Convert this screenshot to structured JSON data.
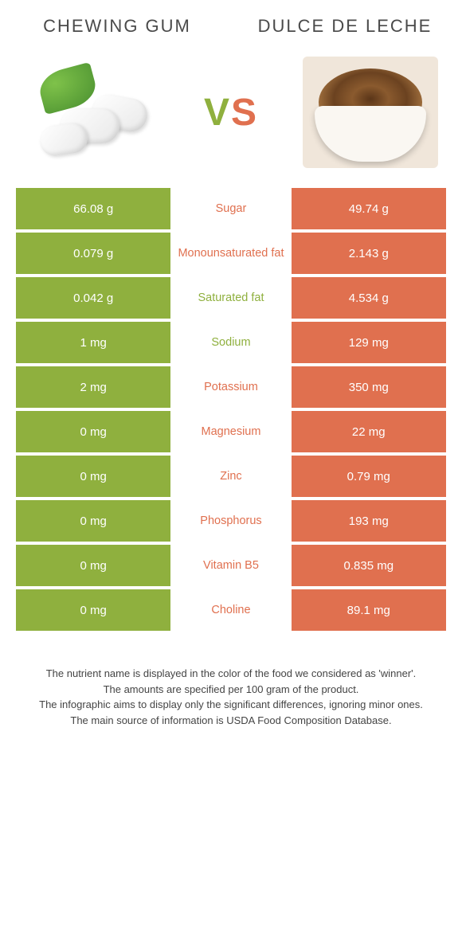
{
  "left_title": "CHEWING GUM",
  "right_title": "DULCE DE LECHE",
  "vs_v": "V",
  "vs_s": "S",
  "colors": {
    "left": "#8fb03e",
    "right": "#e0704f",
    "background": "#ffffff"
  },
  "rows": [
    {
      "left": "66.08 g",
      "label": "Sugar",
      "right": "49.74 g",
      "winner": "left"
    },
    {
      "left": "0.079 g",
      "label": "Monounsaturated fat",
      "right": "2.143 g",
      "winner": "right"
    },
    {
      "left": "0.042 g",
      "label": "Saturated fat",
      "right": "4.534 g",
      "winner": "left"
    },
    {
      "left": "1 mg",
      "label": "Sodium",
      "right": "129 mg",
      "winner": "left"
    },
    {
      "left": "2 mg",
      "label": "Potassium",
      "right": "350 mg",
      "winner": "right"
    },
    {
      "left": "0 mg",
      "label": "Magnesium",
      "right": "22 mg",
      "winner": "right"
    },
    {
      "left": "0 mg",
      "label": "Zinc",
      "right": "0.79 mg",
      "winner": "right"
    },
    {
      "left": "0 mg",
      "label": "Phosphorus",
      "right": "193 mg",
      "winner": "right"
    },
    {
      "left": "0 mg",
      "label": "Vitamin B5",
      "right": "0.835 mg",
      "winner": "right"
    },
    {
      "left": "0 mg",
      "label": "Choline",
      "right": "89.1 mg",
      "winner": "right"
    }
  ],
  "footer": {
    "l1": "The nutrient name is displayed in the color of the food we considered as 'winner'.",
    "l2": "The amounts are specified per 100 gram of the product.",
    "l3": "The infographic aims to display only the significant differences, ignoring minor ones.",
    "l4": "The main source of information is USDA Food Composition Database."
  }
}
